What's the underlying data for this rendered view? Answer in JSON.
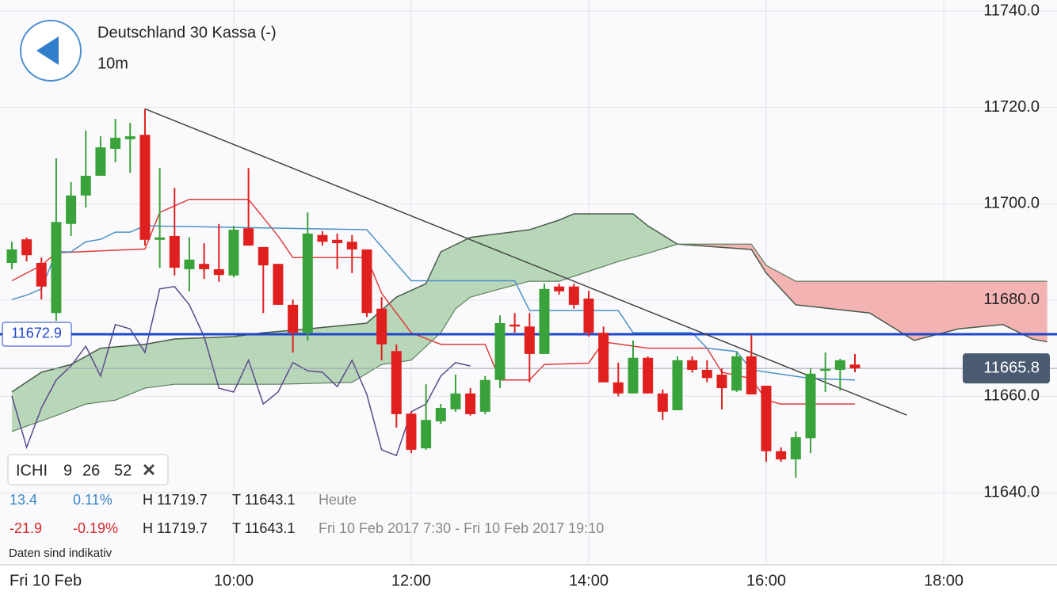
{
  "chart_data": {
    "type": "candlestick",
    "title": "Deutschland 30 Kassa (-)",
    "subtitle": "10m",
    "x_date_label": "Fri 10 Feb",
    "up_color": "#3aa23a",
    "down_color": "#e0201f",
    "x": [
      450,
      460,
      470,
      480,
      490,
      500,
      510,
      520,
      530,
      540,
      550,
      560,
      570,
      580,
      590,
      600,
      610,
      620,
      630,
      640,
      650,
      660,
      670,
      680,
      690,
      700,
      710,
      720,
      730,
      740,
      750,
      760,
      770,
      780,
      790,
      800,
      810,
      820,
      830,
      840,
      850,
      860,
      870,
      880,
      890,
      900,
      910,
      920,
      930,
      940,
      950,
      960,
      970,
      980,
      990,
      1000,
      1010,
      1020
    ],
    "open": [
      11687.7,
      11692.6,
      11687.7,
      11677.3,
      11695.8,
      11701.7,
      11705.8,
      11711.4,
      11713.4,
      11714.3,
      11692.5,
      11693.3,
      11686.4,
      11687.5,
      11686.4,
      11685.1,
      11694.9,
      11691,
      11687.5,
      11679,
      11673.2,
      11693.5,
      11692.5,
      11692.1,
      11690.5,
      11678.2,
      11669.4,
      11656.4,
      11649.2,
      11654.8,
      11657.3,
      11660.6,
      11656.8,
      11663.4,
      11674.9,
      11674.5,
      11668.8,
      11682.8,
      11682.8,
      11680.3,
      11673.2,
      11662.9,
      11660.6,
      11668,
      11660.6,
      11657.1,
      11667.5,
      11665.5,
      11664.5,
      11661.2,
      11668.3,
      11662.2,
      11648.6,
      11646.9,
      11651.3,
      11665.3,
      11665.5,
      11666.6
    ],
    "high": [
      11692.1,
      11693,
      11688.8,
      11709.4,
      11704.5,
      11715.2,
      11714,
      11717.6,
      11716.8,
      11719.7,
      11707.4,
      11703.3,
      11693,
      11691.8,
      11695.8,
      11695.4,
      11707.4,
      11691,
      11687.5,
      11680.1,
      11698.2,
      11694.3,
      11693.8,
      11693.5,
      11690.5,
      11680.6,
      11670.8,
      11656.8,
      11662.5,
      11658.4,
      11664.5,
      11661.7,
      11664.2,
      11676.8,
      11677.3,
      11677.3,
      11683.4,
      11683.4,
      11683.4,
      11681.9,
      11674.5,
      11667,
      11671.6,
      11668.3,
      11661.4,
      11668.3,
      11668.3,
      11667.5,
      11665.8,
      11669.1,
      11672.7,
      11662.2,
      11649.4,
      11652.7,
      11665.8,
      11669.1,
      11667.8,
      11668.8
    ],
    "low": [
      11686.4,
      11688,
      11680.1,
      11675.7,
      11693.3,
      11699.2,
      11705.8,
      11708.6,
      11706.4,
      11691.3,
      11686.7,
      11685.1,
      11681.8,
      11684.4,
      11683.8,
      11684.7,
      11691.3,
      11677.3,
      11679,
      11669.1,
      11671.6,
      11691.3,
      11686.4,
      11685.6,
      11676.5,
      11667.5,
      11653.5,
      11648.2,
      11648.9,
      11654.3,
      11656.8,
      11656,
      11656.3,
      11661.7,
      11673.2,
      11662.9,
      11668.8,
      11681.1,
      11678.2,
      11672.4,
      11662.9,
      11660,
      11660.6,
      11660.6,
      11655.1,
      11657.1,
      11664.9,
      11662.9,
      11657.3,
      11660.9,
      11660.4,
      11646.4,
      11646.4,
      11643.1,
      11648.2,
      11660.9,
      11661.2,
      11665
    ],
    "close": [
      11690.5,
      11689.3,
      11682.8,
      11696.2,
      11701.7,
      11705.8,
      11711.7,
      11713.7,
      11714,
      11692.5,
      11693,
      11686.7,
      11688.4,
      11686.4,
      11685.2,
      11694.6,
      11691.3,
      11687.2,
      11679,
      11673.2,
      11693.8,
      11692.1,
      11691.8,
      11690.5,
      11677.3,
      11670.8,
      11656.3,
      11648.9,
      11655.1,
      11657.6,
      11660.6,
      11656.3,
      11663.4,
      11675.2,
      11674.5,
      11668.8,
      11682.3,
      11681.8,
      11679,
      11673.2,
      11662.9,
      11660.6,
      11668,
      11660.6,
      11656.8,
      11667.5,
      11665.5,
      11663.8,
      11661.7,
      11668.3,
      11660.4,
      11648.6,
      11646.9,
      11651.5,
      11664.7,
      11665.7,
      11667.5,
      11665.8
    ],
    "indicators": {
      "span_a": {
        "color": "#4a5a4a",
        "x": [
          450,
          470,
          490,
          510,
          540,
          560,
          600,
          620,
          650,
          690,
          710,
          730,
          740,
          760,
          780,
          800,
          820,
          830,
          870,
          880,
          900,
          950,
          960,
          980,
          1030,
          1060,
          1090,
          1120,
          1140,
          1150
        ],
        "values": [
          11660.9,
          11665,
          11666.6,
          11670,
          11670.8,
          11671.9,
          11672.4,
          11673.2,
          11674,
          11675.2,
          11680.6,
          11683.4,
          11690,
          11693,
          11693.8,
          11694.6,
          11696.6,
          11697.9,
          11697.9,
          11695.4,
          11691.6,
          11690.5,
          11685.6,
          11679,
          11677.3,
          11671.6,
          11674,
          11674.9,
          11671.9,
          11671.3
        ]
      },
      "span_b": {
        "color": "#5f7f5f",
        "x": [
          450,
          480,
          500,
          520,
          540,
          560,
          630,
          680,
          700,
          720,
          740,
          750,
          760,
          780,
          800,
          820,
          860,
          880,
          900,
          950,
          960,
          980,
          1150
        ],
        "values": [
          11652.7,
          11656,
          11658.4,
          11659.2,
          11661.7,
          11662.5,
          11662.5,
          11662.9,
          11666.6,
          11667.5,
          11673.2,
          11678.2,
          11680.6,
          11682.3,
          11683.9,
          11683.9,
          11688,
          11689.7,
          11691.6,
          11691.6,
          11687.2,
          11683.9,
          11683.9
        ]
      },
      "tenkan": {
        "color": "#4a90c8",
        "x": [
          450,
          460,
          470,
          480,
          490,
          500,
          510,
          520,
          530,
          540,
          690,
          720,
          790,
          800,
          860,
          870,
          910,
          920,
          940,
          950,
          990,
          1020
        ],
        "values": [
          11680.1,
          11681,
          11682.3,
          11690,
          11690,
          11692.1,
          11692.6,
          11694.1,
          11694.1,
          11695.4,
          11694.6,
          11684,
          11684,
          11677.8,
          11677.8,
          11673.2,
          11673.2,
          11670,
          11669.3,
          11665.5,
          11663.7,
          11663.4
        ]
      },
      "kijun": {
        "color": "#e03c3c",
        "x": [
          450,
          470,
          480,
          540,
          550,
          570,
          610,
          630,
          640,
          690,
          700,
          720,
          740,
          770,
          780,
          800,
          810,
          840,
          850,
          880,
          920,
          930,
          950,
          960,
          970,
          1020
        ],
        "values": [
          11684,
          11687.2,
          11689.8,
          11690.6,
          11698.2,
          11700.9,
          11700.9,
          11693.3,
          11688.8,
          11688.8,
          11681.4,
          11673.2,
          11670.8,
          11670.8,
          11663.4,
          11663.4,
          11666.6,
          11666.9,
          11671.3,
          11670,
          11670,
          11665,
          11663.7,
          11659.2,
          11658.4,
          11658.4
        ]
      },
      "chikou": {
        "color": "#5b4a8b",
        "x": [
          450,
          460,
          470,
          480,
          490,
          500,
          510,
          520,
          530,
          540,
          550,
          560,
          570,
          580,
          590,
          600,
          610,
          620,
          630,
          640,
          650,
          660,
          670,
          680,
          690,
          700,
          710,
          720,
          730,
          740,
          750,
          760
        ],
        "values": [
          11660.1,
          11649.4,
          11657.6,
          11663.4,
          11666.3,
          11670.4,
          11664.2,
          11674.9,
          11674,
          11669.1,
          11682.3,
          11682.8,
          11679,
          11672.4,
          11661.7,
          11660.9,
          11667.5,
          11658.4,
          11660.9,
          11667,
          11665.3,
          11665,
          11662,
          11667.5,
          11660.4,
          11648.9,
          11647.7,
          11656.8,
          11658.4,
          11664.2,
          11667,
          11666.3
        ]
      }
    },
    "trendline": {
      "color": "#444444",
      "x": [
        540,
        1055
      ],
      "values": [
        11719.7,
        11656.1
      ]
    },
    "levels": [
      {
        "value": 11672.9,
        "color": "#1f45c8"
      },
      {
        "value": 11665.8,
        "color": "#9aa5b8"
      }
    ],
    "xlim": [
      442,
      1156.6
    ],
    "ylim": [
      11625.2,
      11742.3
    ],
    "xticks": [
      {
        "value": 600,
        "label": "10:00"
      },
      {
        "value": 720,
        "label": "12:00"
      },
      {
        "value": 840,
        "label": "14:00"
      },
      {
        "value": 960,
        "label": "16:00"
      },
      {
        "value": 1080,
        "label": "18:00"
      }
    ],
    "yticks": [
      {
        "value": 11640,
        "label": "11640.0"
      },
      {
        "value": 11660,
        "label": "11660.0"
      },
      {
        "value": 11680,
        "label": "11680.0"
      },
      {
        "value": 11700,
        "label": "11700.0"
      },
      {
        "value": 11720,
        "label": "11720.0"
      },
      {
        "value": 11740,
        "label": "11740.0"
      }
    ],
    "grid": true
  },
  "indicator": {
    "name": "ICHI",
    "params": [
      9,
      26,
      52
    ]
  },
  "stats": {
    "rows": [
      [
        "13.4",
        "0.11%",
        "H 11719.7",
        "T 11643.1",
        "Heute"
      ],
      [
        "-21.9",
        "-0.19%",
        "H 11719.7",
        "T 11643.1",
        "Fri 10 Feb 2017 7:30 - Fri 10 Feb 2017 19:10"
      ]
    ],
    "note": "Daten sind indikativ"
  }
}
